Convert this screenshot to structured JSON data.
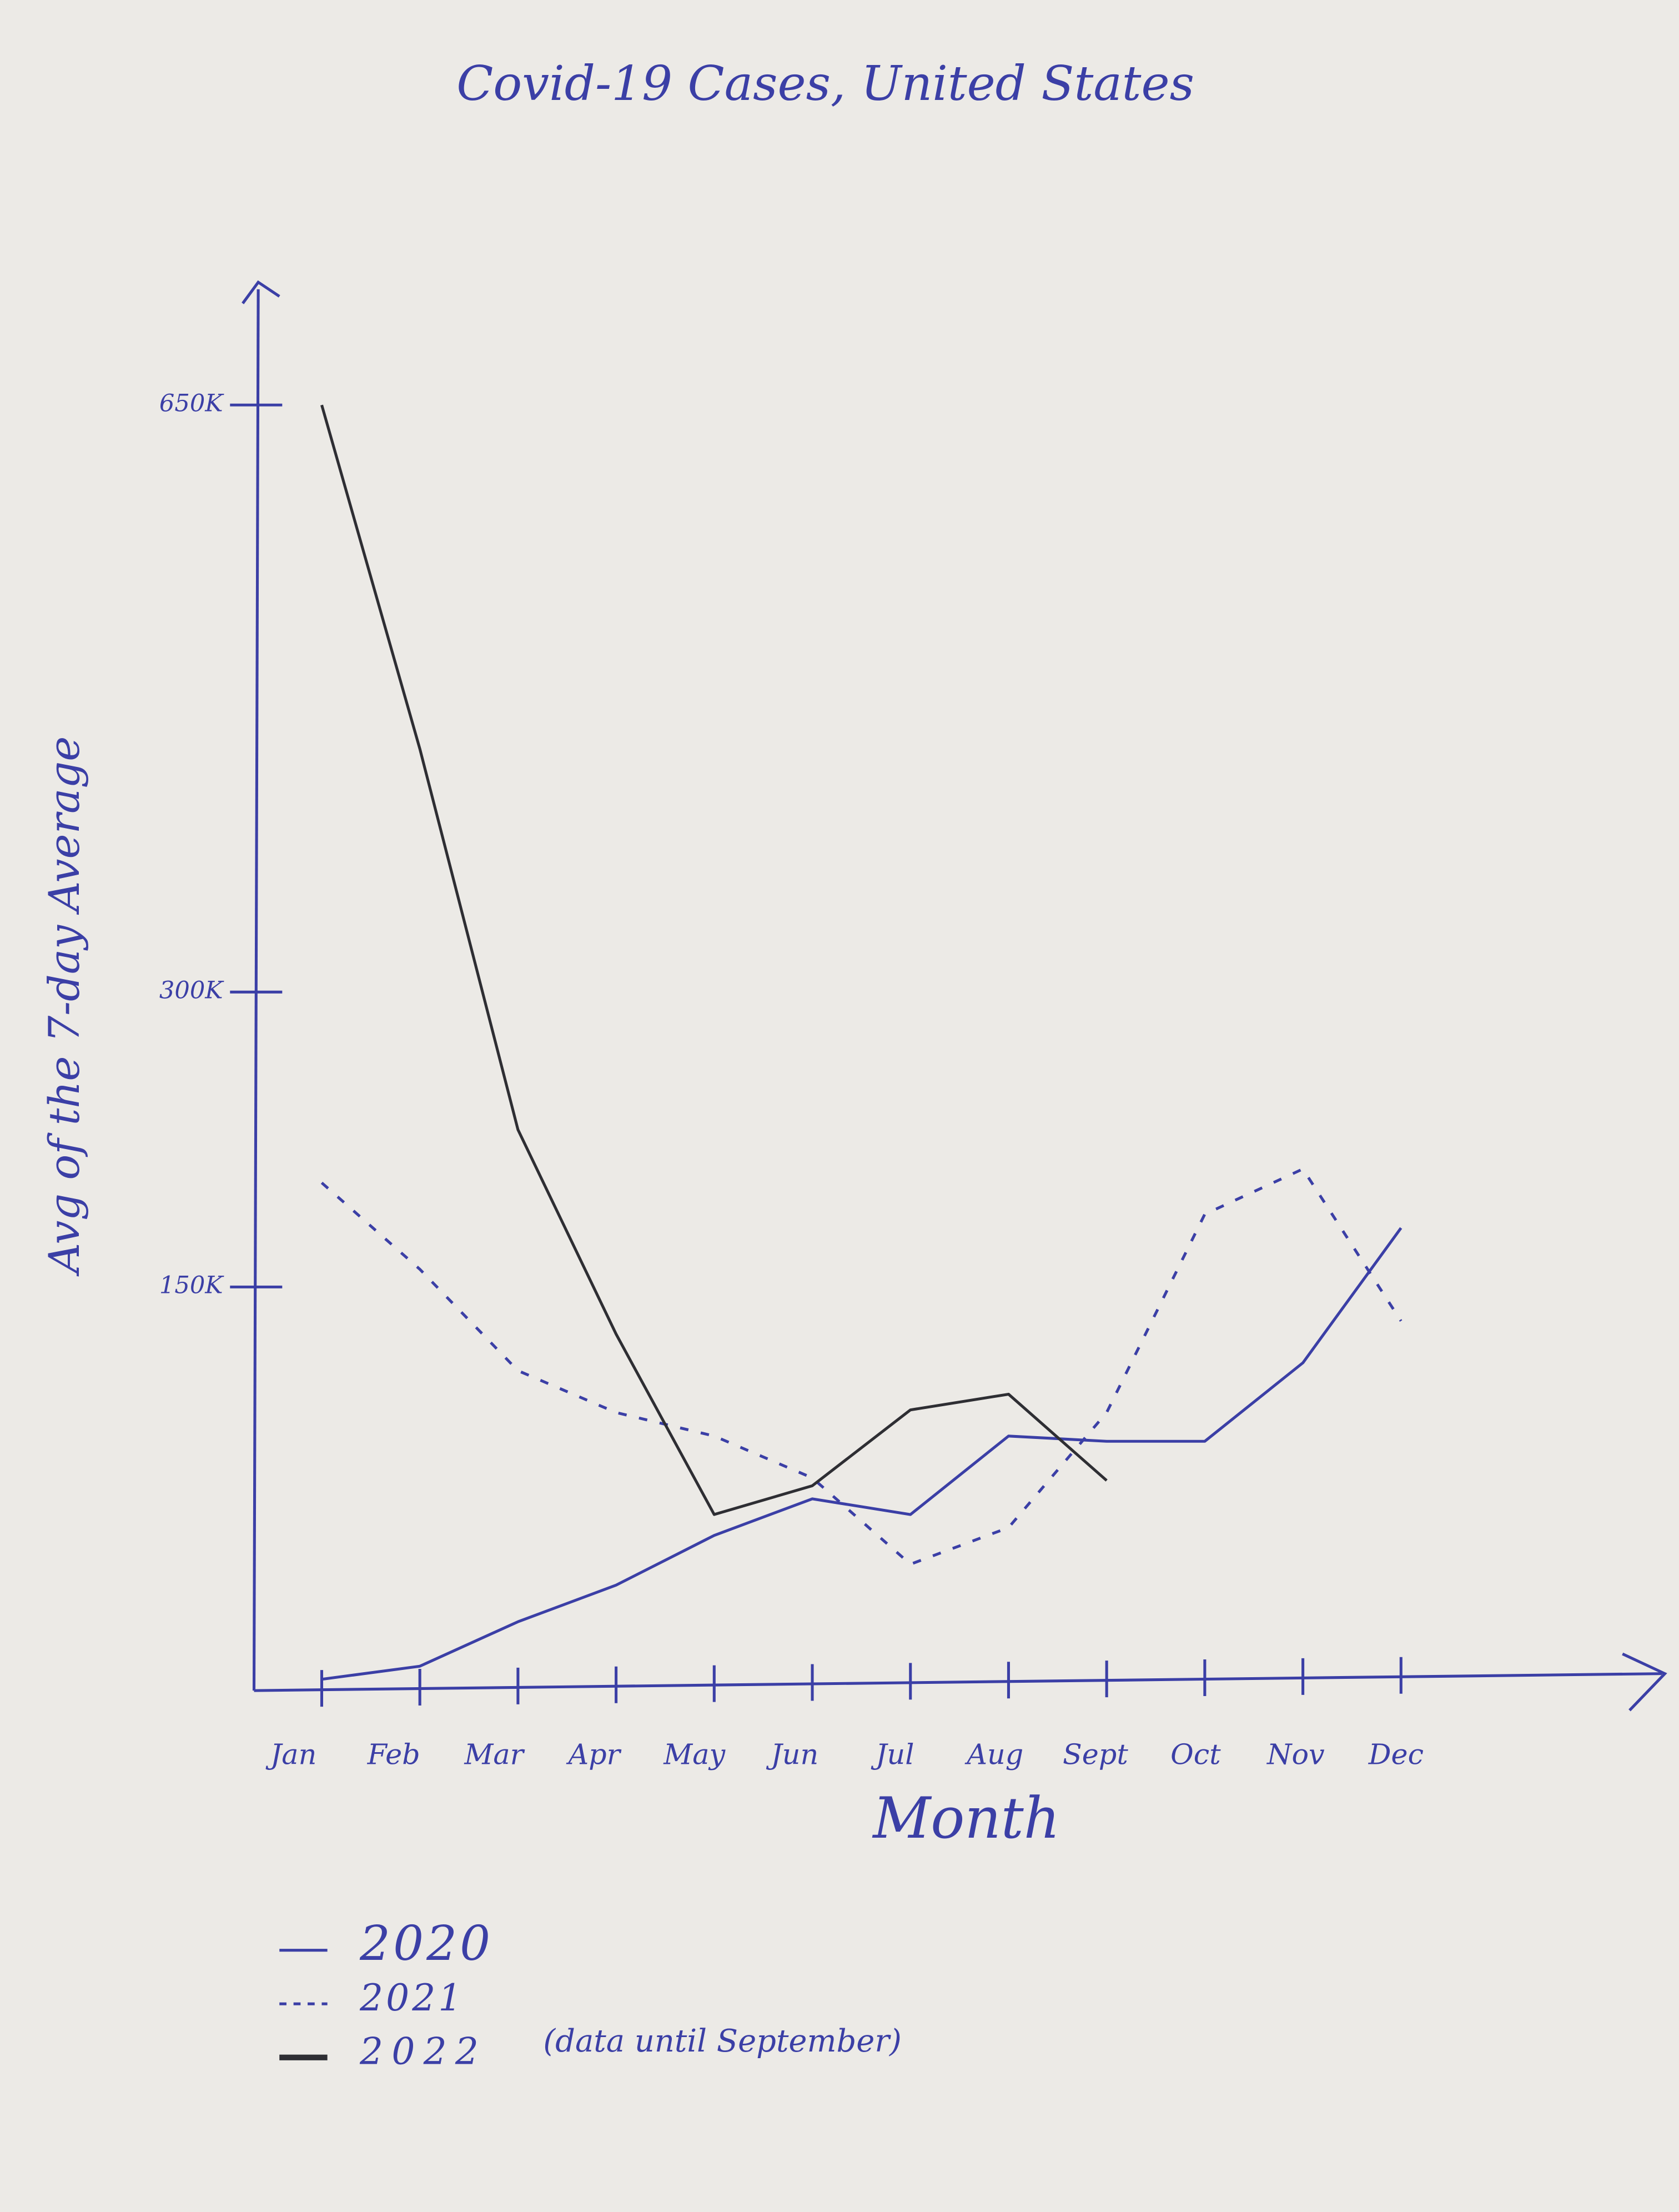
{
  "chart_data": {
    "type": "line",
    "title": "Covid-19 Cases, United States",
    "x_label": "Month",
    "y_label": "Avg of the 7-day Average",
    "categories": [
      "Jan",
      "Feb",
      "Mar",
      "Apr",
      "May",
      "Jun",
      "Jul",
      "Aug",
      "Sept",
      "Oct",
      "Nov",
      "Dec"
    ],
    "series": [
      {
        "name": "2020",
        "color": "#3b3fa6",
        "dashed": false,
        "values": [
          0,
          5000,
          22000,
          36000,
          55000,
          69000,
          63000,
          93000,
          91000,
          91000,
          121000,
          180000
        ]
      },
      {
        "name": "2021",
        "color": "#3b3fa6",
        "dashed": true,
        "values": [
          203000,
          159000,
          118000,
          102000,
          93000,
          77000,
          44000,
          58000,
          102000,
          187000,
          210000,
          137000
        ]
      },
      {
        "name": "2022",
        "color": "#2e2e33",
        "dashed": false,
        "values": [
          650000,
          445000,
          230000,
          132000,
          63000,
          74000,
          103000,
          109000,
          76000,
          null,
          null,
          null
        ]
      }
    ],
    "legend_note": "(data until September)",
    "ylim": [
      0,
      650000
    ],
    "yticks": [
      {
        "value": 150000,
        "label": "150K"
      },
      {
        "value": 300000,
        "label": "300K"
      },
      {
        "value": 650000,
        "label": "650K"
      }
    ]
  }
}
